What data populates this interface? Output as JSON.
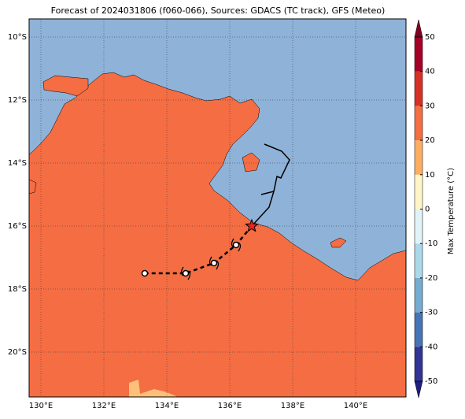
{
  "title": "Forecast of 2024031806 (f060-066), Sources: GDACS (TC track), GFS (Meteo)",
  "map": {
    "lon_range": [
      129.625,
      141.6
    ],
    "lat_range": [
      -9.425,
      -21.425
    ],
    "lon_ticks": [
      {
        "value": 130,
        "label": "130°E"
      },
      {
        "value": 132,
        "label": "132°E"
      },
      {
        "value": 134,
        "label": "134°E"
      },
      {
        "value": 136,
        "label": "136°E"
      },
      {
        "value": 138,
        "label": "138°E"
      },
      {
        "value": 140,
        "label": "140°E"
      }
    ],
    "lat_ticks": [
      {
        "value": -10,
        "label": "10°S"
      },
      {
        "value": -12,
        "label": "12°S"
      },
      {
        "value": -14,
        "label": "14°S"
      },
      {
        "value": -16,
        "label": "16°S"
      },
      {
        "value": -18,
        "label": "18°S"
      },
      {
        "value": -20,
        "label": "20°S"
      }
    ],
    "land_color": "#f46d43",
    "sea_color": "#8fb2d8",
    "sand_color": "#fdc07a"
  },
  "track": {
    "past_lon": [
      137.1,
      137.65,
      137.9,
      137.625,
      137.5,
      137.4,
      137.0
    ],
    "past_lat": [
      -13.4,
      -13.625,
      -13.9,
      -14.475,
      -14.425,
      -14.9,
      -15.0
    ],
    "link_lon": [
      137.4,
      137.25,
      136.7
    ],
    "link_lat": [
      -14.9,
      -15.4,
      -16.0
    ],
    "current": [
      136.7,
      -16.0
    ],
    "forecast_lon": [
      136.7,
      136.2,
      135.5,
      134.6,
      133.3
    ],
    "forecast_lat": [
      -16.0,
      -16.6,
      -17.175,
      -17.5,
      -17.5
    ]
  },
  "colorbar": {
    "label": "Max Temperature (°C)",
    "range": [
      -50,
      50
    ],
    "ticks": [
      50,
      40,
      30,
      20,
      10,
      0,
      -10,
      -20,
      -30,
      -40,
      -50
    ],
    "colors": [
      "#313695",
      "#4575b4",
      "#74add1",
      "#abd9e9",
      "#e0f3f8",
      "#fff6c8",
      "#fdae61",
      "#f46d43",
      "#d73027",
      "#a50026"
    ],
    "under_color": "#1e1e80",
    "over_color": "#7f0020"
  }
}
